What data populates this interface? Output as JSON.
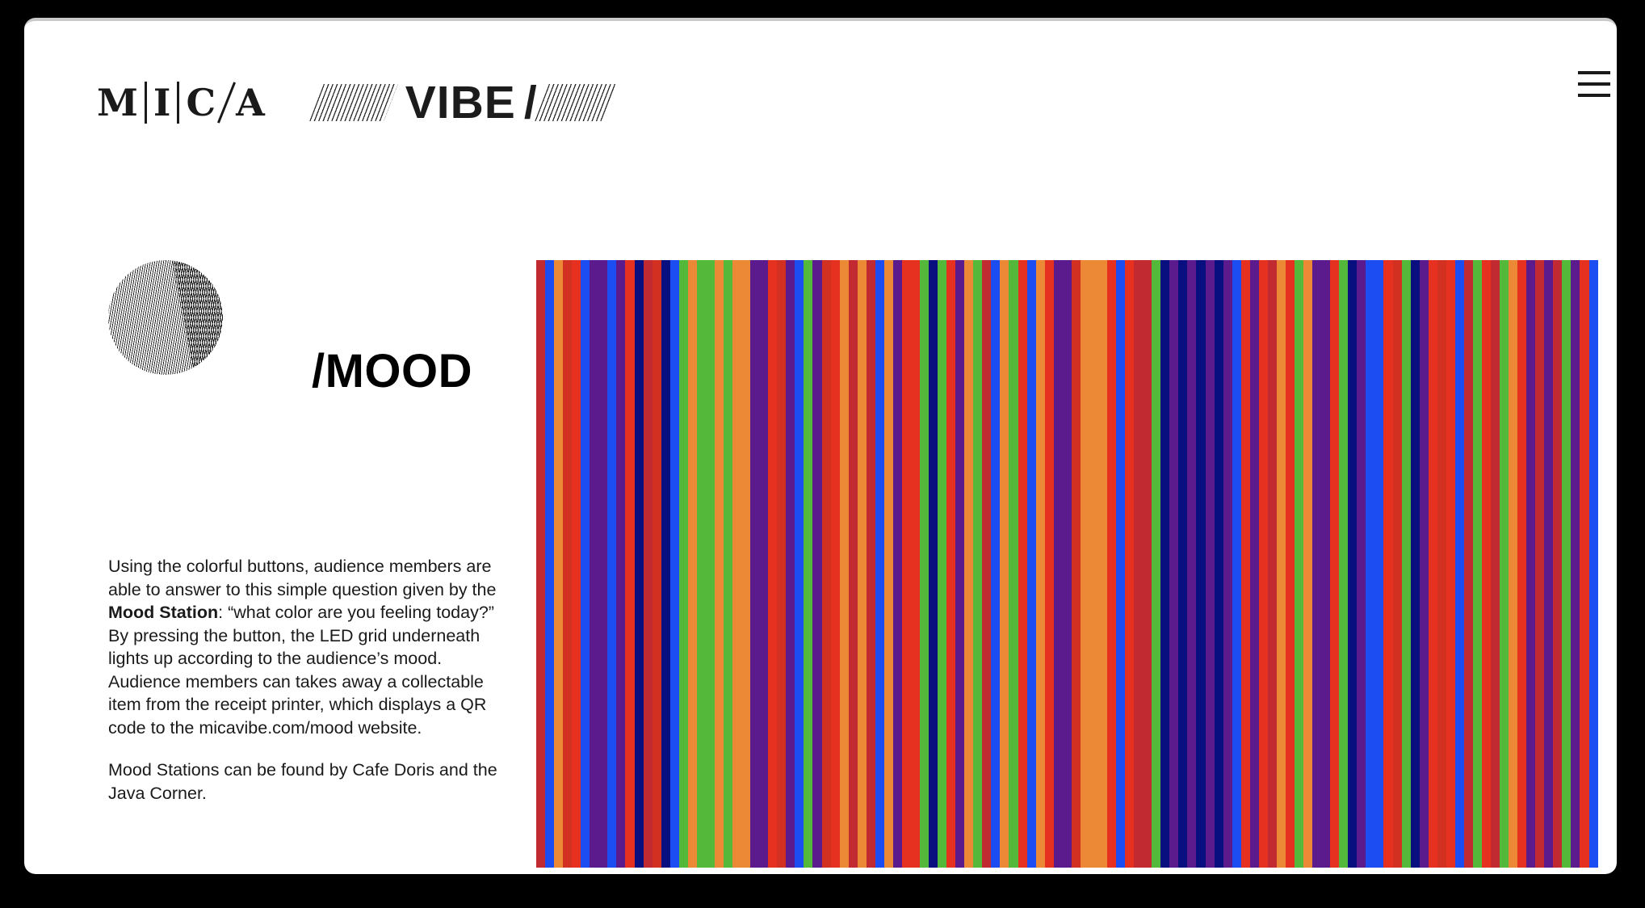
{
  "header": {
    "mica_letters": [
      "M",
      "I",
      "C",
      "A"
    ],
    "vibe_label": "VIBE",
    "vibe_slash": "/"
  },
  "menu": {
    "icon": "hamburger-icon"
  },
  "mood_section": {
    "title": "/MOOD",
    "paragraph1": {
      "before_bold": "Using the colorful buttons, audience members are able to answer to this simple question given by the ",
      "bold": "Mood Station",
      "after_bold": ": “what color are you feeling today?” By pressing the button, the LED grid underneath lights up according to the audience’s mood. Audience members can takes away a collectable item from the receipt printer, which displays a QR code to the micavibe.com/mood website."
    },
    "paragraph2": "Mood Stations can be found by Cafe Doris and the Java Corner.",
    "decorations": {
      "hatched_circle": "moire-hatched-circle",
      "yellow_circle_color": "#EDD55E",
      "blue_circle_color": "#24498A"
    }
  },
  "stripe_field": {
    "palette": {
      "red": "#E63120",
      "darkred": "#D23020",
      "crimson": "#C02A30",
      "orange": "#EC8936",
      "green": "#54B83A",
      "blue": "#1C4DF2",
      "navy": "#0A0F80",
      "purple": "#5B1B8D"
    },
    "stripes": [
      "crimson",
      "blue",
      "orange",
      "darkred",
      "red",
      "blue",
      "purple",
      "purple",
      "blue",
      "purple",
      "red",
      "navy",
      "crimson",
      "darkred",
      "navy",
      "blue",
      "green",
      "orange",
      "green",
      "green",
      "orange",
      "green",
      "orange",
      "orange",
      "purple",
      "purple",
      "red",
      "darkred",
      "purple",
      "blue",
      "green",
      "purple",
      "darkred",
      "red",
      "orange",
      "crimson",
      "orange",
      "crimson",
      "blue",
      "orange",
      "purple",
      "red",
      "red",
      "green",
      "navy",
      "green",
      "red",
      "purple",
      "orange",
      "green",
      "crimson",
      "blue",
      "orange",
      "green",
      "red",
      "blue",
      "orange",
      "red",
      "purple",
      "purple",
      "darkred",
      "orange",
      "orange",
      "orange",
      "red",
      "blue",
      "red",
      "crimson",
      "crimson",
      "green",
      "navy",
      "purple",
      "navy",
      "purple",
      "navy",
      "purple",
      "navy",
      "purple",
      "blue",
      "red",
      "purple",
      "red",
      "crimson",
      "orange",
      "red",
      "green",
      "orange",
      "purple",
      "purple",
      "red",
      "green",
      "navy",
      "purple",
      "blue",
      "blue",
      "red",
      "darkred",
      "green",
      "navy",
      "purple",
      "red",
      "darkred",
      "red",
      "blue",
      "crimson",
      "green",
      "red",
      "crimson",
      "green",
      "orange",
      "red",
      "purple",
      "crimson",
      "purple",
      "crimson",
      "green",
      "purple",
      "red",
      "blue"
    ]
  }
}
